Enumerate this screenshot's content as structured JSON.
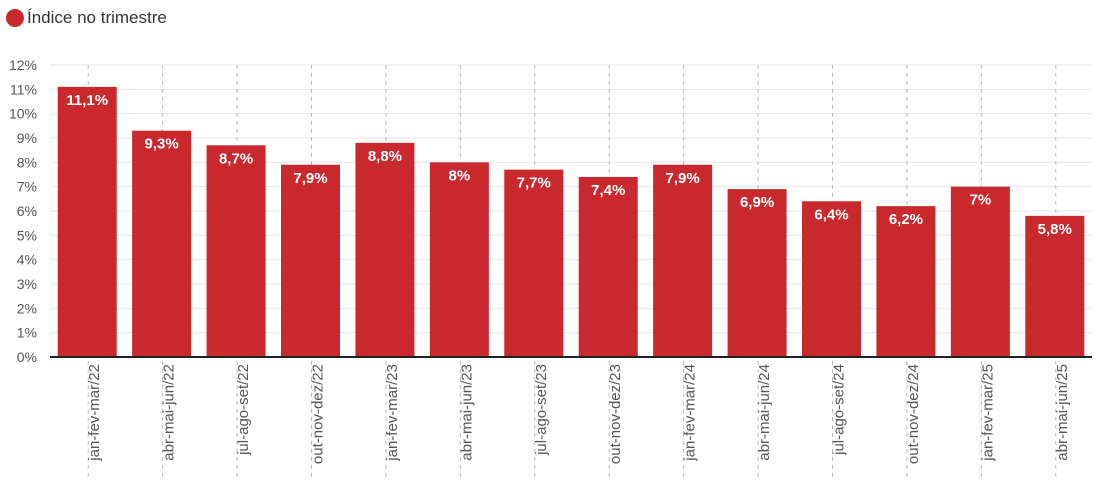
{
  "chart_data": {
    "type": "bar",
    "title": "",
    "xlabel": "",
    "ylabel": "",
    "series": [
      {
        "name": "Índice no trimestre",
        "color": "#c9282d",
        "values": [
          11.1,
          9.3,
          8.7,
          7.9,
          8.8,
          8.0,
          7.7,
          7.4,
          7.9,
          6.9,
          6.4,
          6.2,
          7.0,
          5.8
        ]
      }
    ],
    "categories": [
      "jan-fev-mar/22",
      "abr-mai-jun/22",
      "jul-ago-set/22",
      "out-nov-dez/22",
      "jan-fev-mar/23",
      "abr-mai-jun/23",
      "jul-ago-set/23",
      "out-nov-dez/23",
      "jan-fev-mar/24",
      "abr-mai-jun/24",
      "jul-ago-set/24",
      "out-nov-dez/24",
      "jan-fev-mar/25",
      "abr-mai-jun/25"
    ],
    "data_labels": [
      "11,1%",
      "9,3%",
      "8,7%",
      "7,9%",
      "8,8%",
      "8%",
      "7,7%",
      "7,4%",
      "7,9%",
      "6,9%",
      "6,4%",
      "6,2%",
      "7%",
      "5,8%"
    ],
    "ylim": [
      0,
      12
    ],
    "yticks": [
      "0%",
      "1%",
      "2%",
      "3%",
      "4%",
      "5%",
      "6%",
      "7%",
      "8%",
      "9%",
      "10%",
      "11%",
      "12%"
    ],
    "grid": true,
    "legend_position": "top-left"
  }
}
